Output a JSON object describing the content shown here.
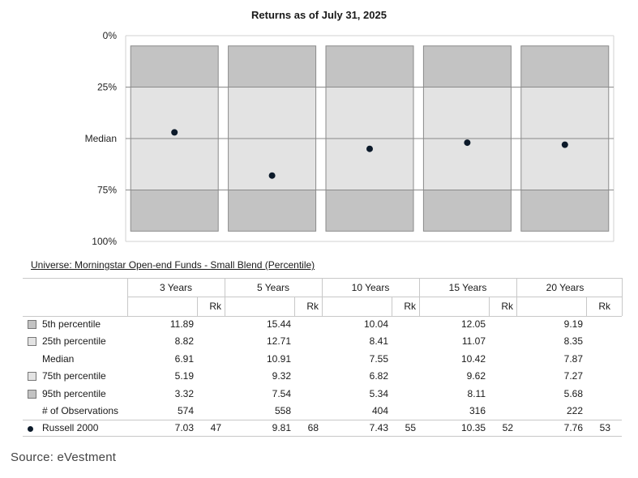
{
  "chart_data": {
    "type": "box",
    "title": "Returns as of July 31, 2025",
    "y_tick_labels": [
      "0%",
      "25%",
      "Median",
      "75%",
      "100%"
    ],
    "y_ticks": [
      0,
      25,
      50,
      75,
      100
    ],
    "ylim": [
      0,
      100
    ],
    "y_inverted": true,
    "categories": [
      "3 Years",
      "5 Years",
      "10 Years",
      "15 Years",
      "20 Years"
    ],
    "bands": [
      {
        "name": "5th-25th percentile",
        "from": 5,
        "to": 25,
        "color": "#c3c3c3"
      },
      {
        "name": "25th-75th percentile",
        "from": 25,
        "to": 75,
        "color": "#e3e3e3"
      },
      {
        "name": "75th-95th percentile",
        "from": 75,
        "to": 95,
        "color": "#c3c3c3"
      }
    ],
    "series": [
      {
        "name": "Russell 2000",
        "ranks": [
          47,
          68,
          55,
          52,
          53
        ],
        "values": [
          7.03,
          9.81,
          7.43,
          10.35,
          7.76
        ],
        "color": "#0c1a2a"
      }
    ]
  },
  "universe_label": "Universe: Morningstar Open-end Funds - Small Blend (Percentile)",
  "table": {
    "periods": [
      "3 Years",
      "5 Years",
      "10 Years",
      "15 Years",
      "20 Years"
    ],
    "rk_label": "Rk",
    "rows": [
      {
        "label": "5th percentile",
        "swatch": "#c3c3c3",
        "values": [
          "11.89",
          "15.44",
          "10.04",
          "12.05",
          "9.19"
        ]
      },
      {
        "label": "25th percentile",
        "swatch": "#e3e3e3",
        "values": [
          "8.82",
          "12.71",
          "8.41",
          "11.07",
          "8.35"
        ]
      },
      {
        "label": "Median",
        "swatch": "",
        "values": [
          "6.91",
          "10.91",
          "7.55",
          "10.42",
          "7.87"
        ]
      },
      {
        "label": "75th percentile",
        "swatch": "#e3e3e3",
        "values": [
          "5.19",
          "9.32",
          "6.82",
          "9.62",
          "7.27"
        ]
      },
      {
        "label": "95th percentile",
        "swatch": "#c3c3c3",
        "values": [
          "3.32",
          "7.54",
          "5.34",
          "8.11",
          "5.68"
        ]
      },
      {
        "label": "# of Observations",
        "swatch": "",
        "values": [
          "574",
          "558",
          "404",
          "316",
          "222"
        ]
      }
    ],
    "benchmark": {
      "label": "Russell 2000",
      "values": [
        "7.03",
        "9.81",
        "7.43",
        "10.35",
        "7.76"
      ],
      "ranks": [
        "47",
        "68",
        "55",
        "52",
        "53"
      ]
    }
  },
  "source": "Source: eVestment"
}
